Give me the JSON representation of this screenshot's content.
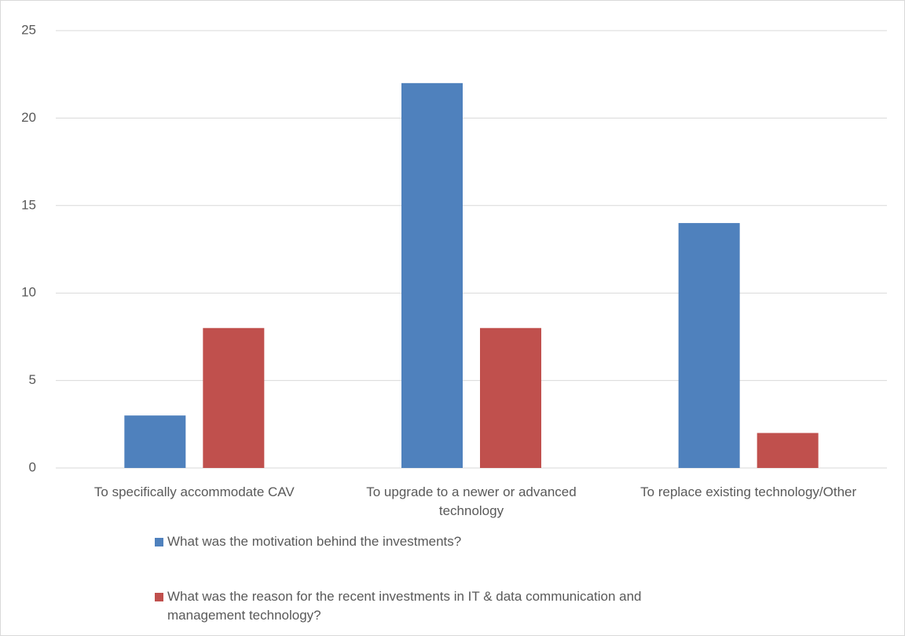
{
  "chart_data": {
    "type": "bar",
    "categories": [
      "To specifically accommodate CAV",
      "To upgrade to a newer or advanced technology",
      "To replace existing technology/Other"
    ],
    "series": [
      {
        "name": "What was the motivation behind the investments?",
        "color": "#4f81bd",
        "values": [
          3,
          22,
          14
        ]
      },
      {
        "name": "What was the reason for the recent investments in IT & data communication and management technology?",
        "color": "#c0504d",
        "values": [
          8,
          8,
          2
        ]
      }
    ],
    "ylim": [
      0,
      25
    ],
    "yticks": [
      0,
      5,
      10,
      15,
      20,
      25
    ],
    "grid": true,
    "legend": "bottom"
  }
}
